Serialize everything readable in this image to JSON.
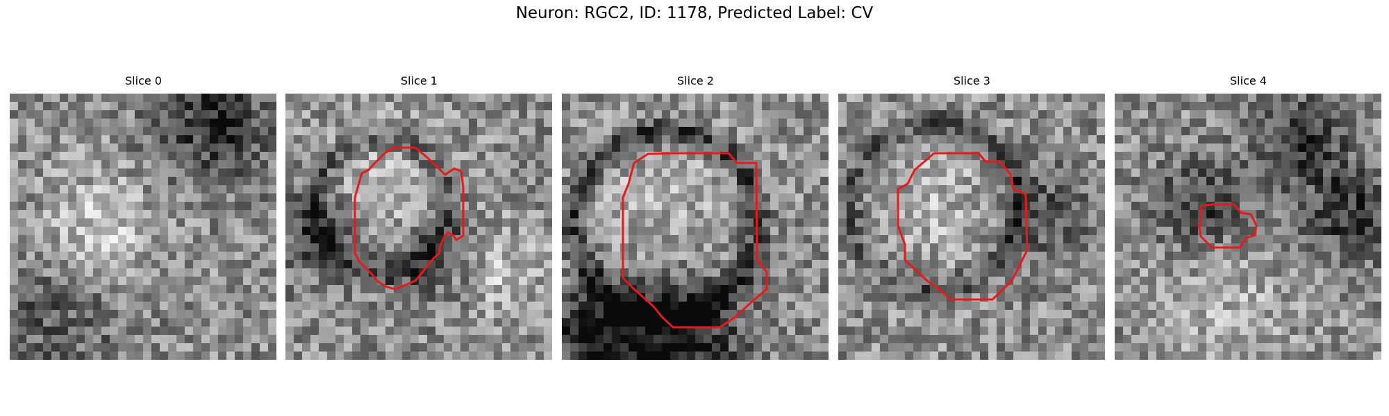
{
  "figure": {
    "title": "Neuron: RGC2, ID: 1178, Predicted Label: CV",
    "contour_color": "#e8191a",
    "colormap": "grayscale"
  },
  "panels": [
    {
      "title": "Slice 0",
      "has_contour": false,
      "seed": 11
    },
    {
      "title": "Slice 1",
      "has_contour": true,
      "seed": 23
    },
    {
      "title": "Slice 2",
      "has_contour": true,
      "seed": 37
    },
    {
      "title": "Slice 3",
      "has_contour": true,
      "seed": 41
    },
    {
      "title": "Slice 4",
      "has_contour": true,
      "seed": 53
    }
  ]
}
